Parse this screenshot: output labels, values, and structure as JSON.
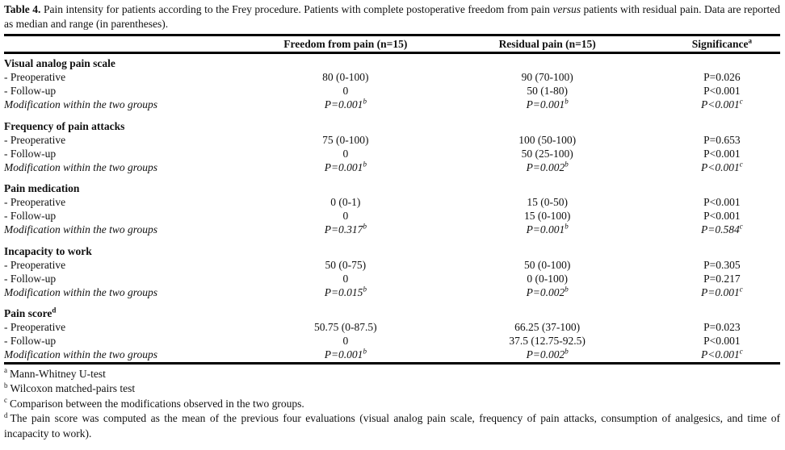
{
  "caption": {
    "label": "Table 4.",
    "segments": [
      {
        "text": " Pain intensity for patients according to the Frey procedure. Patients with complete postoperative freedom from pain ",
        "style": "normal"
      },
      {
        "text": "versus",
        "style": "italic"
      },
      {
        "text": " patients with residual pain. Data are reported as median and range (in parentheses).",
        "style": "normal"
      }
    ]
  },
  "table": {
    "headers": {
      "label_col": "",
      "freedom": "Freedom from pain (n=15)",
      "residual": "Residual pain (n=15)",
      "significance": "Significance",
      "significance_sup": "a"
    },
    "sections": [
      {
        "title": "Visual analog pain scale",
        "title_sup": "",
        "rows": [
          {
            "label": "- Preoperative",
            "italic": false,
            "freedom": "80 (0-100)",
            "freedom_sup": "",
            "residual": "90 (70-100)",
            "residual_sup": "",
            "significance": "P=0.026",
            "significance_sup": ""
          },
          {
            "label": "- Follow-up",
            "italic": false,
            "freedom": "0",
            "freedom_sup": "",
            "residual": "50 (1-80)",
            "residual_sup": "",
            "significance": "P<0.001",
            "significance_sup": ""
          },
          {
            "label": "Modification within the two groups",
            "italic": true,
            "freedom": "P=0.001",
            "freedom_sup": "b",
            "residual": "P=0.001",
            "residual_sup": "b",
            "significance": "P<0.001",
            "significance_sup": "c"
          }
        ]
      },
      {
        "title": "Frequency of pain attacks",
        "title_sup": "",
        "rows": [
          {
            "label": "- Preoperative",
            "italic": false,
            "freedom": "75 (0-100)",
            "freedom_sup": "",
            "residual": "100 (50-100)",
            "residual_sup": "",
            "significance": "P=0.653",
            "significance_sup": ""
          },
          {
            "label": "- Follow-up",
            "italic": false,
            "freedom": "0",
            "freedom_sup": "",
            "residual": "50 (25-100)",
            "residual_sup": "",
            "significance": "P<0.001",
            "significance_sup": ""
          },
          {
            "label": "Modification within the two groups",
            "italic": true,
            "freedom": "P=0.001",
            "freedom_sup": "b",
            "residual": "P=0.002",
            "residual_sup": "b",
            "significance": "P<0.001",
            "significance_sup": "c"
          }
        ]
      },
      {
        "title": "Pain medication",
        "title_sup": "",
        "rows": [
          {
            "label": "- Preoperative",
            "italic": false,
            "freedom": "0 (0-1)",
            "freedom_sup": "",
            "residual": "15 (0-50)",
            "residual_sup": "",
            "significance": "P<0.001",
            "significance_sup": ""
          },
          {
            "label": "- Follow-up",
            "italic": false,
            "freedom": "0",
            "freedom_sup": "",
            "residual": "15 (0-100)",
            "residual_sup": "",
            "significance": "P<0.001",
            "significance_sup": ""
          },
          {
            "label": "Modification within the two groups",
            "italic": true,
            "freedom": "P=0.317",
            "freedom_sup": "b",
            "residual": "P=0.001",
            "residual_sup": "b",
            "significance": "P=0.584",
            "significance_sup": "c"
          }
        ]
      },
      {
        "title": "Incapacity to work",
        "title_sup": "",
        "rows": [
          {
            "label": "- Preoperative",
            "italic": false,
            "freedom": "50 (0-75)",
            "freedom_sup": "",
            "residual": "50 (0-100)",
            "residual_sup": "",
            "significance": "P=0.305",
            "significance_sup": ""
          },
          {
            "label": "- Follow-up",
            "italic": false,
            "freedom": "0",
            "freedom_sup": "",
            "residual": "0 (0-100)",
            "residual_sup": "",
            "significance": "P=0.217",
            "significance_sup": ""
          },
          {
            "label": "Modification within the two groups",
            "italic": true,
            "freedom": "P=0.015",
            "freedom_sup": "b",
            "residual": "P=0.002",
            "residual_sup": "b",
            "significance": "P=0.001",
            "significance_sup": "c"
          }
        ]
      },
      {
        "title": "Pain score",
        "title_sup": "d",
        "rows": [
          {
            "label": "- Preoperative",
            "italic": false,
            "freedom": "50.75 (0-87.5)",
            "freedom_sup": "",
            "residual": "66.25 (37-100)",
            "residual_sup": "",
            "significance": "P=0.023",
            "significance_sup": ""
          },
          {
            "label": "- Follow-up",
            "italic": false,
            "freedom": "0",
            "freedom_sup": "",
            "residual": "37.5 (12.75-92.5)",
            "residual_sup": "",
            "significance": "P<0.001",
            "significance_sup": ""
          },
          {
            "label": "Modification within the two groups",
            "italic": true,
            "freedom": "P=0.001",
            "freedom_sup": "b",
            "residual": "P=0.002",
            "residual_sup": "b",
            "significance": "P<0.001",
            "significance_sup": "c"
          }
        ]
      }
    ]
  },
  "footnotes": [
    {
      "marker": "a",
      "text": "Mann-Whitney U-test"
    },
    {
      "marker": "b",
      "text": "Wilcoxon matched-pairs test"
    },
    {
      "marker": "c",
      "text": "Comparison between the modifications observed in the two groups."
    },
    {
      "marker": "d",
      "text": "The pain score was computed as the mean of the previous four evaluations (visual analog pain scale, frequency of pain attacks, consumption of analgesics, and time of incapacity to work)."
    }
  ]
}
